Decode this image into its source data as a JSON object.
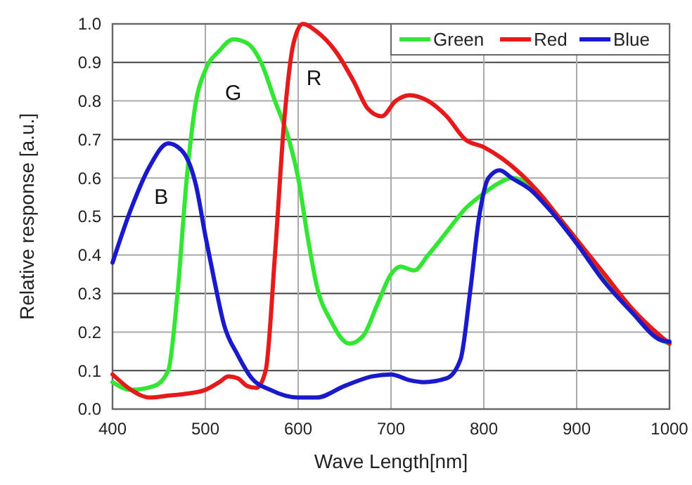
{
  "chart_data": {
    "type": "line",
    "xlabel": "Wave Length[nm]",
    "ylabel": "Relative response [a.u.]",
    "xlim": [
      400,
      1000
    ],
    "ylim": [
      0,
      1
    ],
    "xticks": [
      400,
      500,
      600,
      700,
      800,
      900,
      1000
    ],
    "yticks": [
      {
        "value": 0,
        "label": "0.0"
      },
      0.1,
      0.2,
      0.3,
      0.4,
      0.5,
      0.6,
      0.7,
      0.8,
      0.9,
      {
        "value": 1,
        "label": "1.0"
      }
    ],
    "grid": true,
    "legend": "top right",
    "marker": "none",
    "line_style": "solid",
    "annotations": [
      "G",
      "R",
      "B"
    ],
    "series": [
      {
        "name": "Green",
        "color": "#33e633",
        "x": [
          400,
          420,
          445,
          460,
          470,
          480,
          490,
          500,
          515,
          530,
          545,
          560,
          575,
          590,
          600,
          610,
          620,
          635,
          655,
          670,
          685,
          700,
          710,
          725,
          740,
          760,
          780,
          800,
          815,
          830,
          845,
          860,
          880,
          900,
          930,
          960,
          990,
          1000
        ],
        "values": [
          0.07,
          0.05,
          0.06,
          0.1,
          0.3,
          0.6,
          0.8,
          0.88,
          0.93,
          0.96,
          0.95,
          0.9,
          0.8,
          0.7,
          0.6,
          0.45,
          0.32,
          0.23,
          0.17,
          0.19,
          0.27,
          0.35,
          0.37,
          0.36,
          0.4,
          0.46,
          0.52,
          0.56,
          0.585,
          0.6,
          0.59,
          0.56,
          0.5,
          0.44,
          0.34,
          0.25,
          0.18,
          0.17
        ]
      },
      {
        "name": "Red",
        "color": "#e61a1a",
        "x": [
          400,
          420,
          440,
          460,
          480,
          500,
          515,
          525,
          535,
          545,
          555,
          565,
          575,
          585,
          595,
          605,
          620,
          640,
          660,
          675,
          690,
          705,
          720,
          740,
          760,
          780,
          800,
          820,
          840,
          860,
          880,
          900,
          930,
          960,
          990,
          1000
        ],
        "values": [
          0.09,
          0.05,
          0.03,
          0.035,
          0.04,
          0.05,
          0.07,
          0.085,
          0.08,
          0.06,
          0.055,
          0.1,
          0.4,
          0.75,
          0.95,
          1,
          0.98,
          0.93,
          0.85,
          0.78,
          0.76,
          0.8,
          0.815,
          0.8,
          0.76,
          0.7,
          0.68,
          0.65,
          0.61,
          0.56,
          0.5,
          0.44,
          0.35,
          0.26,
          0.19,
          0.17
        ]
      },
      {
        "name": "Blue",
        "color": "#1a1acc",
        "x": [
          400,
          420,
          440,
          460,
          475,
          490,
          500,
          510,
          520,
          535,
          550,
          570,
          600,
          620,
          650,
          680,
          700,
          720,
          735,
          760,
          775,
          785,
          795,
          805,
          817,
          830,
          850,
          870,
          900,
          930,
          960,
          990,
          1000
        ],
        "values": [
          0.38,
          0.52,
          0.63,
          0.69,
          0.67,
          0.58,
          0.45,
          0.33,
          0.22,
          0.14,
          0.08,
          0.05,
          0.03,
          0.03,
          0.06,
          0.085,
          0.09,
          0.075,
          0.07,
          0.08,
          0.13,
          0.3,
          0.5,
          0.6,
          0.62,
          0.6,
          0.57,
          0.52,
          0.43,
          0.33,
          0.25,
          0.18,
          0.175
        ]
      }
    ]
  }
}
